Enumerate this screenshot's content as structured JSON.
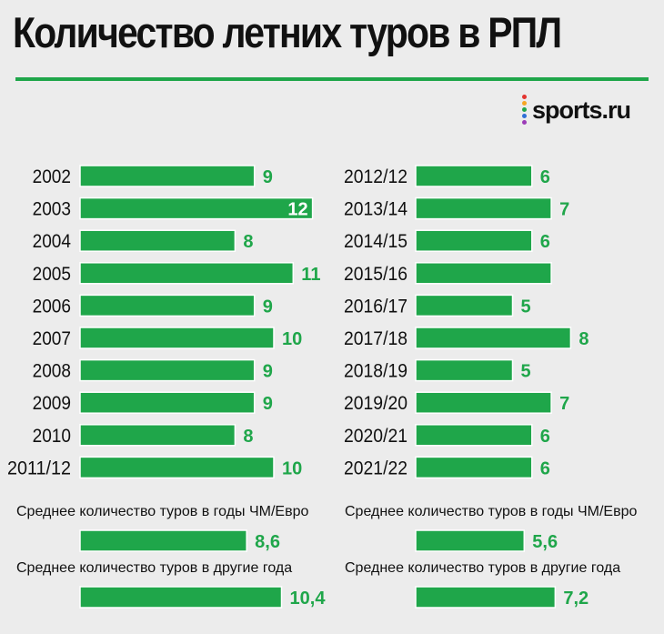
{
  "title": "Количество летних туров в РПЛ",
  "logo": {
    "text": "sports.ru",
    "dot_colors": [
      "#e3342f",
      "#f6a623",
      "#1fa64a",
      "#2f6fd6",
      "#9b3bb7"
    ]
  },
  "colors": {
    "bar": "#1fa64a",
    "bar_border": "#ffffff",
    "value_label": "#1fa64a",
    "text": "#111111",
    "background": "#ececec",
    "rule": "#1fa64a"
  },
  "chart_data": [
    {
      "type": "bar",
      "orientation": "horizontal",
      "categories": [
        "2002",
        "2003",
        "2004",
        "2005",
        "2006",
        "2007",
        "2008",
        "2009",
        "2010",
        "2011/12"
      ],
      "values": [
        9,
        12,
        8,
        11,
        9,
        10,
        9,
        9,
        8,
        10
      ],
      "value_labels": [
        "9",
        "12",
        "8",
        "11",
        "9",
        "10",
        "9",
        "9",
        "8",
        "10"
      ],
      "summary": [
        {
          "label": "Среднее количество туров в годы ЧМ/Евро",
          "value": 8.6,
          "value_label": "8,6"
        },
        {
          "label": "Среднее количество туров в другие года",
          "value": 10.4,
          "value_label": "10,4"
        }
      ]
    },
    {
      "type": "bar",
      "orientation": "horizontal",
      "categories": [
        "2012/12",
        "2013/14",
        "2014/15",
        "2015/16",
        "2016/17",
        "2017/18",
        "2018/19",
        "2019/20",
        "2020/21",
        "2021/22"
      ],
      "values": [
        6,
        7,
        6,
        7,
        5,
        8,
        5,
        7,
        6,
        6
      ],
      "value_labels": [
        "6",
        "7",
        "6",
        "",
        "5",
        "8",
        "5",
        "7",
        "6",
        "6"
      ],
      "summary": [
        {
          "label": "Среднее количество туров в годы ЧМ/Евро",
          "value": 5.6,
          "value_label": "5,6"
        },
        {
          "label": "Среднее количество туров в другие года",
          "value": 7.2,
          "value_label": "7,2"
        }
      ]
    }
  ]
}
